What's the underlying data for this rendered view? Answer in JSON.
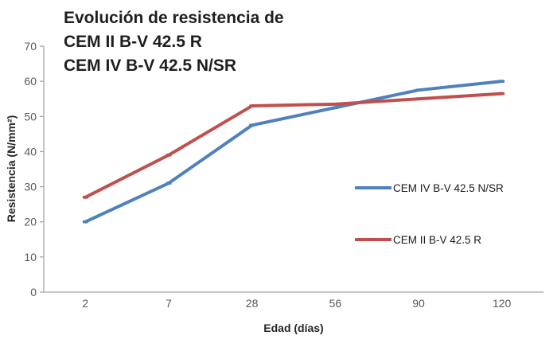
{
  "title": {
    "line1": "Evolución de resistencia de",
    "line2": "CEM II B-V 42.5 R",
    "line3": "CEM IV B-V 42.5 N/SR"
  },
  "chart_data": {
    "type": "line",
    "title": "Evolución de resistencia de CEM II B-V 42.5 R CEM IV B-V 42.5 N/SR",
    "categories": [
      "2",
      "7",
      "28",
      "56",
      "90",
      "120"
    ],
    "series": [
      {
        "name": "CEM IV B-V 42.5 N/SR",
        "color": "#4F81BD",
        "values": [
          20,
          31,
          47.5,
          52.5,
          57.5,
          60
        ]
      },
      {
        "name": "CEM II B-V 42.5 R",
        "color": "#C0504D",
        "values": [
          27,
          39,
          53,
          53.5,
          55,
          56.5
        ]
      }
    ],
    "xlabel": "Edad (días)",
    "ylabel": "Resistencia (N/mm²)",
    "ylim": [
      0,
      70
    ],
    "yticks": [
      0,
      10,
      20,
      30,
      40,
      50,
      60,
      70
    ],
    "grid": false,
    "legend_position": "right-center",
    "axis_color": "#A6A6A6",
    "tick_label_color": "#595959"
  }
}
